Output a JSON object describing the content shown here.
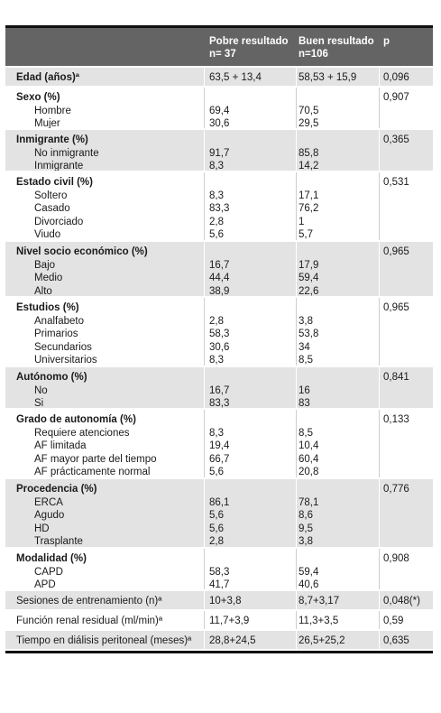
{
  "table": {
    "headers": [
      "",
      "Pobre resultado\nn= 37",
      "Buen resultado\nn=106",
      "p"
    ],
    "header_col2_line1": "Pobre resultado",
    "header_col2_line2": "n= 37",
    "header_col3_line1": "Buen resultado",
    "header_col3_line2": "n=106",
    "header_col4": "p",
    "rows": [
      {
        "label": "Edad (años)ª",
        "bold": true,
        "subs": [],
        "v1": [
          "63,5 + 13,4"
        ],
        "v2": [
          "58,53 + 15,9"
        ],
        "p": "0,096"
      },
      {
        "label": "Sexo (%)",
        "bold": true,
        "subs": [
          "Hombre",
          "Mujer"
        ],
        "v1": [
          "69,4",
          "30,6"
        ],
        "v2": [
          "70,5",
          "29,5"
        ],
        "p": "0,907"
      },
      {
        "label": "Inmigrante (%)",
        "bold": true,
        "subs": [
          "No inmigrante",
          "Inmigrante"
        ],
        "v1": [
          "91,7",
          "8,3"
        ],
        "v2": [
          "85,8",
          "14,2"
        ],
        "p": "0,365"
      },
      {
        "label": "Estado civil (%)",
        "bold": true,
        "subs": [
          "Soltero",
          "Casado",
          "Divorciado",
          "Viudo"
        ],
        "v1": [
          "8,3",
          "83,3",
          "2,8",
          "5,6"
        ],
        "v2": [
          "17,1",
          "76,2",
          "1",
          "5,7"
        ],
        "p": "0,531"
      },
      {
        "label": "Nivel socio económico (%)",
        "bold": true,
        "subs": [
          "Bajo",
          "Medio",
          "Alto"
        ],
        "v1": [
          "16,7",
          "44,4",
          "38,9"
        ],
        "v2": [
          "17,9",
          "59,4",
          "22,6"
        ],
        "p": "0,965"
      },
      {
        "label": "Estudios (%)",
        "bold": true,
        "subs": [
          "Analfabeto",
          "Primarios",
          "Secundarios",
          "Universitarios"
        ],
        "v1": [
          "2,8",
          "58,3",
          "30,6",
          "8,3"
        ],
        "v2": [
          "3,8",
          "53,8",
          "34",
          "8,5"
        ],
        "p": "0,965"
      },
      {
        "label": "Autónomo (%)",
        "bold": true,
        "subs": [
          "No",
          "Si"
        ],
        "v1": [
          "16,7",
          "83,3"
        ],
        "v2": [
          "16",
          "83"
        ],
        "p": "0,841"
      },
      {
        "label": "Grado de autonomía (%)",
        "bold": true,
        "subs": [
          "Requiere atenciones",
          "AF limitada",
          "AF mayor parte del tiempo",
          "AF prácticamente normal"
        ],
        "v1": [
          "8,3",
          "19,4",
          "66,7",
          "5,6"
        ],
        "v2": [
          "8,5",
          "10,4",
          "60,4",
          "20,8"
        ],
        "p": "0,133"
      },
      {
        "label": "Procedencia (%)",
        "bold": true,
        "subs": [
          "ERCA",
          "Agudo",
          "HD",
          "Trasplante"
        ],
        "v1": [
          "86,1",
          "5,6",
          "5,6",
          "2,8"
        ],
        "v2": [
          "78,1",
          "8,6",
          "9,5",
          "3,8"
        ],
        "p": "0,776"
      },
      {
        "label": "Modalidad (%)",
        "bold": true,
        "subs": [
          "CAPD",
          "APD"
        ],
        "v1": [
          "58,3",
          "41,7"
        ],
        "v2": [
          "59,4",
          "40,6"
        ],
        "p": "0,908"
      },
      {
        "label": "Sesiones de entrenamiento (n)ª",
        "bold": false,
        "subs": [],
        "v1": [
          "10+3,8"
        ],
        "v2": [
          "8,7+3,17"
        ],
        "p": "0,048(*)"
      },
      {
        "label": "Función renal residual (ml/min)ª",
        "bold": false,
        "subs": [],
        "v1": [
          "11,7+3,9"
        ],
        "v2": [
          "11,3+3,5"
        ],
        "p": "0,59"
      },
      {
        "label": "Tiempo en diálisis peritoneal (meses)ª",
        "bold": false,
        "subs": [],
        "v1": [
          "28,8+24,5"
        ],
        "v2": [
          "26,5+25,2"
        ],
        "p": "0,635"
      }
    ]
  }
}
